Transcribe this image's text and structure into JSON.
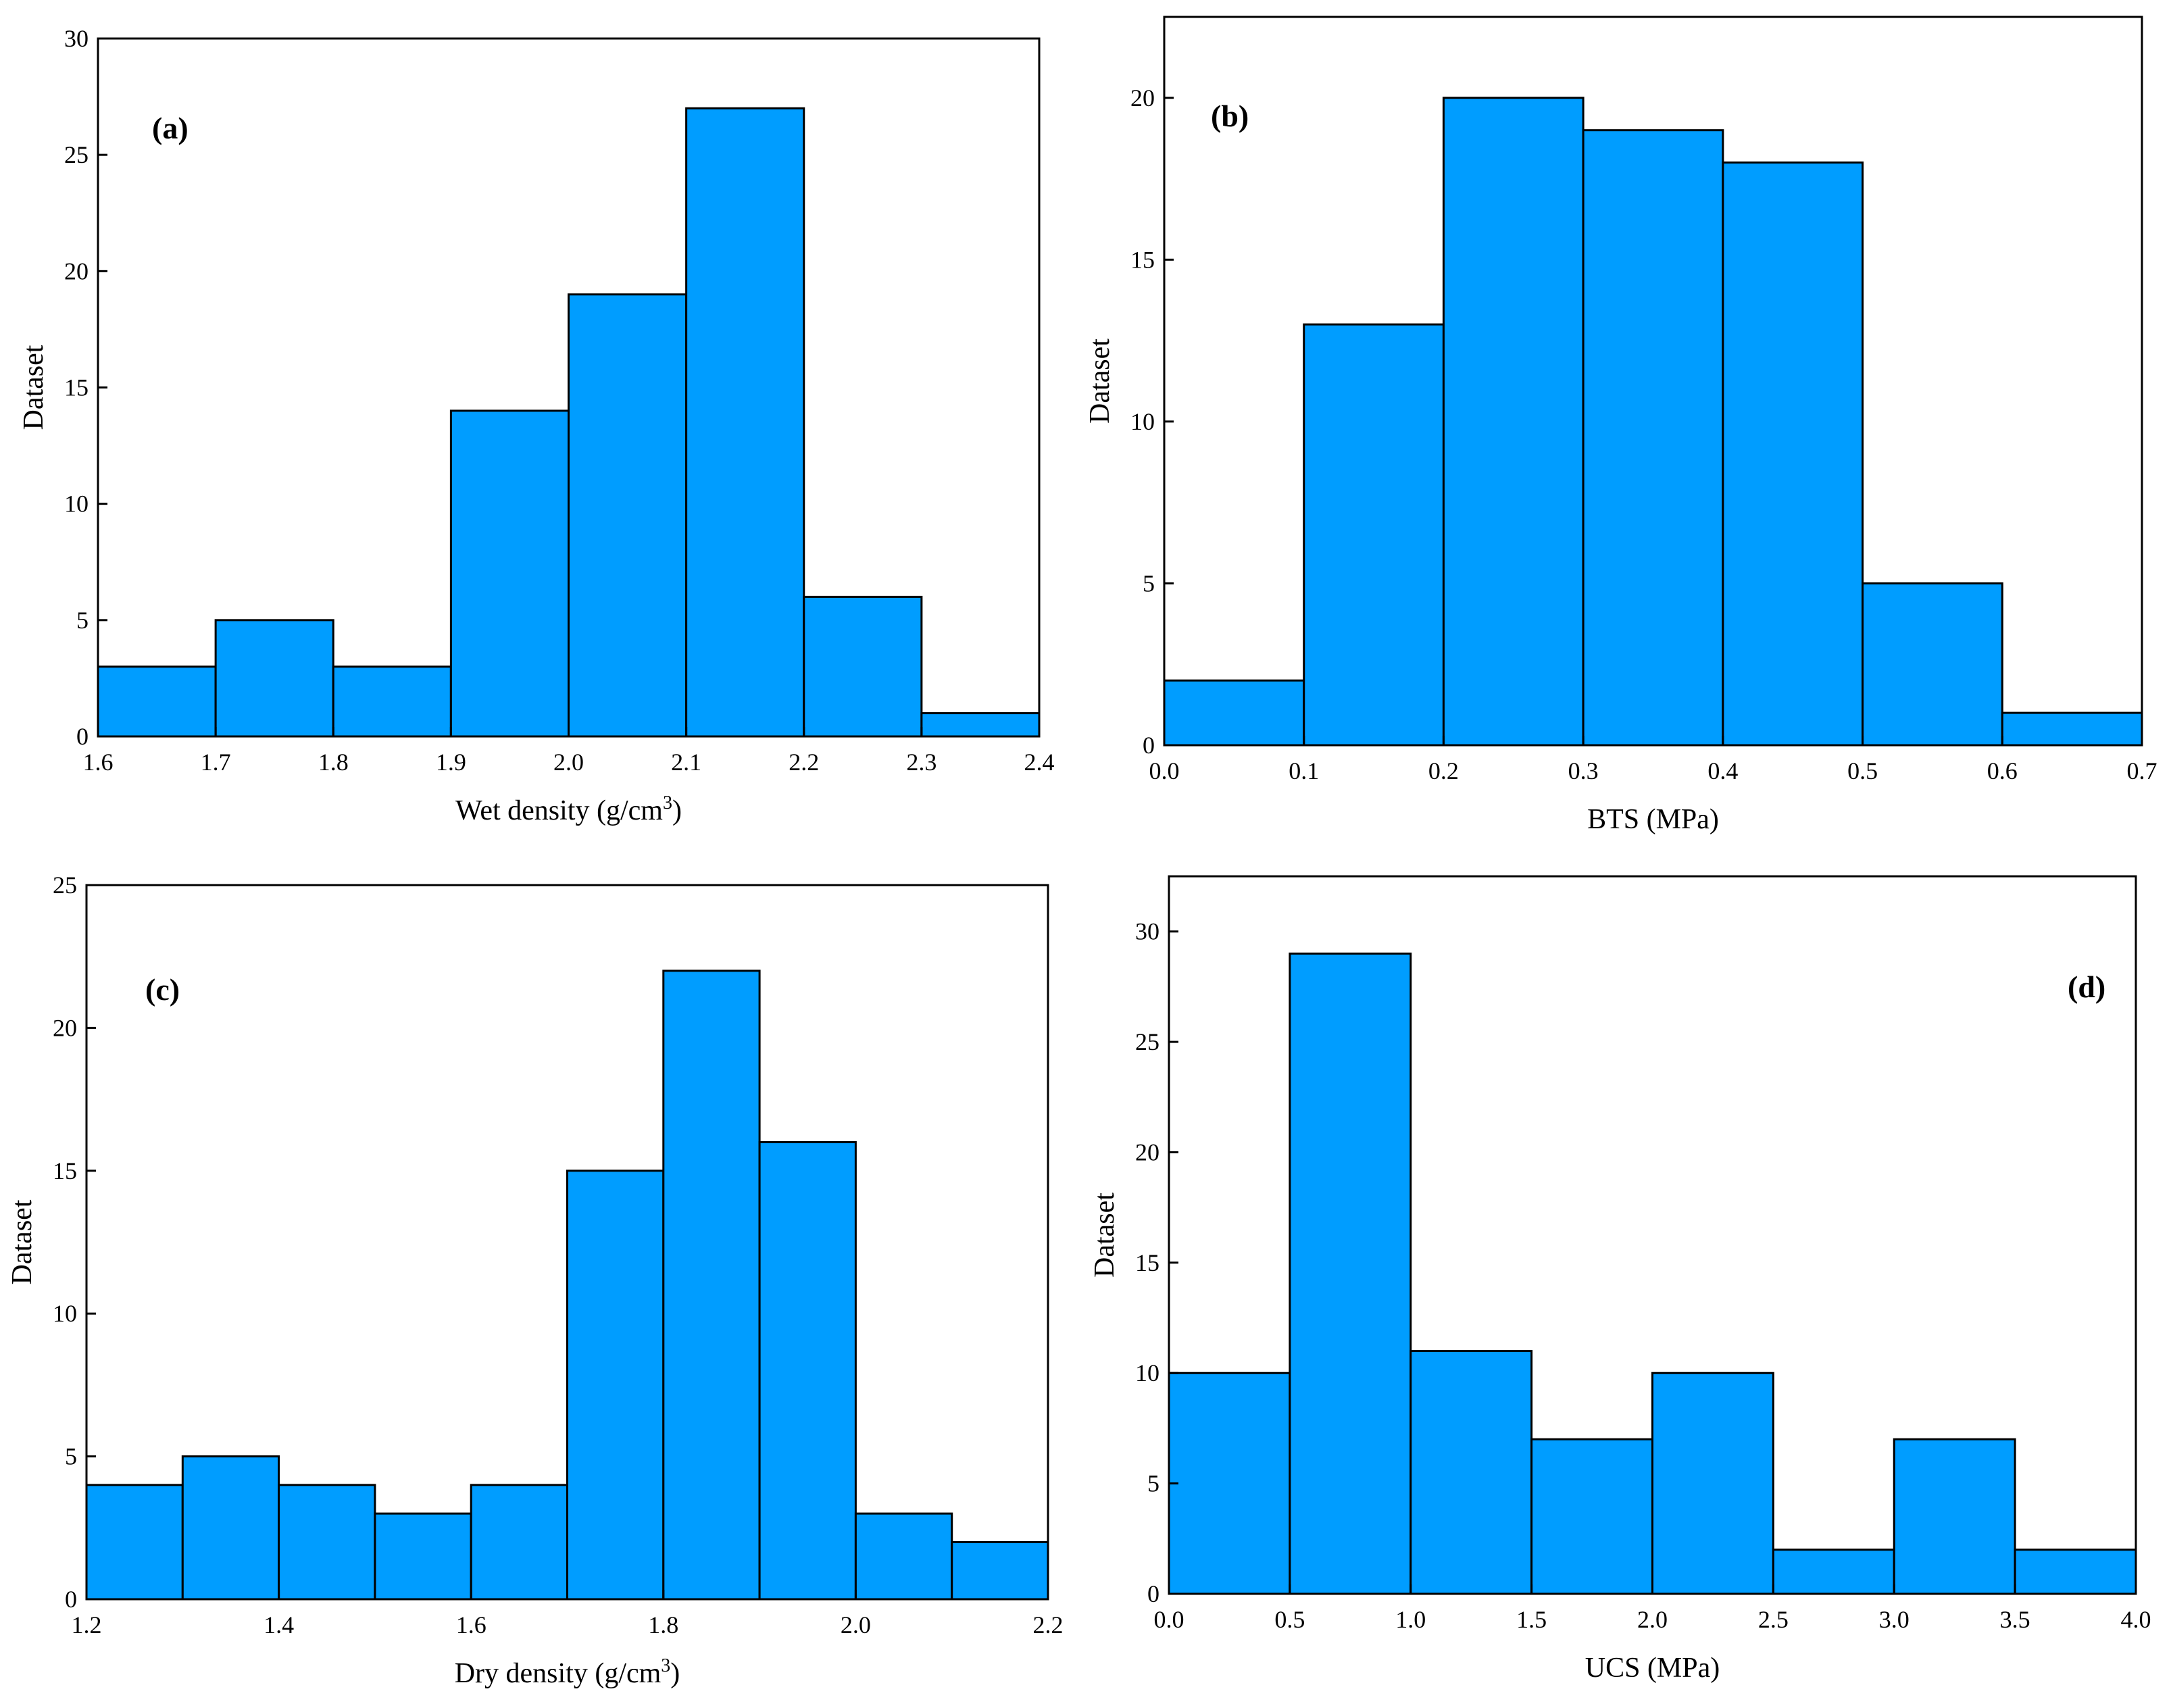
{
  "colors": {
    "bar_fill": "#009dff",
    "bar_stroke": "#000000",
    "axis": "#000000"
  },
  "chart_data": [
    {
      "id": "a",
      "type": "bar",
      "panel_label": "(a)",
      "xlabel": "Wet density (g/cm",
      "xlabel_sup": "3",
      "xlabel_tail": ")",
      "ylabel": "Dataset",
      "bins": [
        [
          1.6,
          1.7
        ],
        [
          1.7,
          1.8
        ],
        [
          1.8,
          1.9
        ],
        [
          1.9,
          2.0
        ],
        [
          2.0,
          2.1
        ],
        [
          2.1,
          2.2
        ],
        [
          2.2,
          2.3
        ],
        [
          2.3,
          2.4
        ]
      ],
      "values": [
        3,
        5,
        3,
        14,
        19,
        27,
        6,
        1
      ],
      "xlim": [
        1.6,
        2.4
      ],
      "ylim": [
        0,
        30
      ],
      "xticks": [
        1.6,
        1.7,
        1.8,
        1.9,
        2.0,
        2.1,
        2.2,
        2.3,
        2.4
      ],
      "xtick_labels": [
        "1.6",
        "1.7",
        "1.8",
        "1.9",
        "2.0",
        "2.1",
        "2.2",
        "2.3",
        "2.4"
      ],
      "yticks": [
        0,
        5,
        10,
        15,
        20,
        25,
        30
      ],
      "ytick_labels": [
        "0",
        "5",
        "10",
        "15",
        "20",
        "25",
        "30"
      ],
      "label_position": "top-left"
    },
    {
      "id": "b",
      "type": "bar",
      "panel_label": "(b)",
      "xlabel": "BTS (MPa)",
      "xlabel_sup": "",
      "xlabel_tail": "",
      "ylabel": "Dataset",
      "bins": [
        [
          0.0,
          0.1
        ],
        [
          0.1,
          0.2
        ],
        [
          0.2,
          0.3
        ],
        [
          0.3,
          0.4
        ],
        [
          0.4,
          0.5
        ],
        [
          0.5,
          0.6
        ],
        [
          0.6,
          0.7
        ]
      ],
      "values": [
        2,
        13,
        20,
        19,
        18,
        5,
        1
      ],
      "xlim": [
        0.0,
        0.7
      ],
      "ylim": [
        0,
        22.5
      ],
      "xticks": [
        0.0,
        0.1,
        0.2,
        0.3,
        0.4,
        0.5,
        0.6,
        0.7
      ],
      "xtick_labels": [
        "0.0",
        "0.1",
        "0.2",
        "0.3",
        "0.4",
        "0.5",
        "0.6",
        "0.7"
      ],
      "yticks": [
        0,
        5,
        10,
        15,
        20
      ],
      "ytick_labels": [
        "0",
        "5",
        "10",
        "15",
        "20"
      ],
      "label_position": "top-left"
    },
    {
      "id": "c",
      "type": "bar",
      "panel_label": "(c)",
      "xlabel": "Dry density (g/cm",
      "xlabel_sup": "3",
      "xlabel_tail": ")",
      "ylabel": "Dataset",
      "bins": [
        [
          1.2,
          1.3
        ],
        [
          1.3,
          1.4
        ],
        [
          1.4,
          1.5
        ],
        [
          1.5,
          1.6
        ],
        [
          1.6,
          1.7
        ],
        [
          1.7,
          1.8
        ],
        [
          1.8,
          1.9
        ],
        [
          1.9,
          2.0
        ],
        [
          2.0,
          2.1
        ],
        [
          2.1,
          2.2
        ]
      ],
      "values": [
        4,
        5,
        4,
        3,
        4,
        15,
        22,
        16,
        3,
        2
      ],
      "xlim": [
        1.2,
        2.2
      ],
      "ylim": [
        0,
        25
      ],
      "xticks": [
        1.2,
        1.4,
        1.6,
        1.8,
        2.0,
        2.2
      ],
      "xtick_labels": [
        "1.2",
        "1.4",
        "1.6",
        "1.8",
        "2.0",
        "2.2"
      ],
      "yticks": [
        0,
        5,
        10,
        15,
        20,
        25
      ],
      "ytick_labels": [
        "0",
        "5",
        "10",
        "15",
        "20",
        "25"
      ],
      "label_position": "top-left"
    },
    {
      "id": "d",
      "type": "bar",
      "panel_label": "(d)",
      "xlabel": "UCS (MPa)",
      "xlabel_sup": "",
      "xlabel_tail": "",
      "ylabel": "Dataset",
      "bins": [
        [
          0.0,
          0.5
        ],
        [
          0.5,
          1.0
        ],
        [
          1.0,
          1.5
        ],
        [
          1.5,
          2.0
        ],
        [
          2.0,
          2.5
        ],
        [
          2.5,
          3.0
        ],
        [
          3.0,
          3.5
        ],
        [
          3.5,
          4.0
        ]
      ],
      "values": [
        10,
        29,
        11,
        7,
        10,
        2,
        7,
        2
      ],
      "xlim": [
        0.0,
        4.0
      ],
      "ylim": [
        0,
        32.5
      ],
      "xticks": [
        0.0,
        0.5,
        1.0,
        1.5,
        2.0,
        2.5,
        3.0,
        3.5,
        4.0
      ],
      "xtick_labels": [
        "0.0",
        "0.5",
        "1.0",
        "1.5",
        "2.0",
        "2.5",
        "3.0",
        "3.5",
        "4.0"
      ],
      "yticks": [
        0,
        5,
        10,
        15,
        20,
        25,
        30
      ],
      "ytick_labels": [
        "0",
        "5",
        "10",
        "15",
        "20",
        "25",
        "30"
      ],
      "label_position": "top-right"
    }
  ]
}
